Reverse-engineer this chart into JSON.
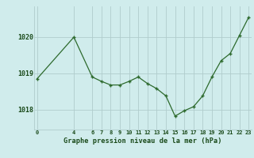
{
  "x": [
    0,
    4,
    6,
    7,
    8,
    9,
    10,
    11,
    12,
    13,
    14,
    15,
    16,
    17,
    18,
    19,
    20,
    21,
    22,
    23
  ],
  "y": [
    1018.85,
    1020.0,
    1018.9,
    1018.78,
    1018.68,
    1018.68,
    1018.78,
    1018.9,
    1018.72,
    1018.58,
    1018.38,
    1017.82,
    1017.97,
    1018.08,
    1018.38,
    1018.9,
    1019.35,
    1019.55,
    1020.05,
    1020.55
  ],
  "xticks": [
    0,
    4,
    6,
    7,
    8,
    9,
    10,
    11,
    12,
    13,
    14,
    15,
    16,
    17,
    18,
    19,
    20,
    21,
    22,
    23
  ],
  "yticks": [
    1018,
    1019,
    1020
  ],
  "ylim": [
    1017.45,
    1020.85
  ],
  "xlim": [
    -0.3,
    23.3
  ],
  "line_color": "#2d6a2d",
  "marker_color": "#2d6a2d",
  "bg_color": "#d0ecec",
  "grid_color": "#b0cccc",
  "xlabel": "Graphe pression niveau de la mer (hPa)",
  "xlabel_color": "#1a4a1a",
  "tick_color": "#1a4a1a",
  "figsize": [
    3.2,
    2.0
  ],
  "dpi": 100
}
